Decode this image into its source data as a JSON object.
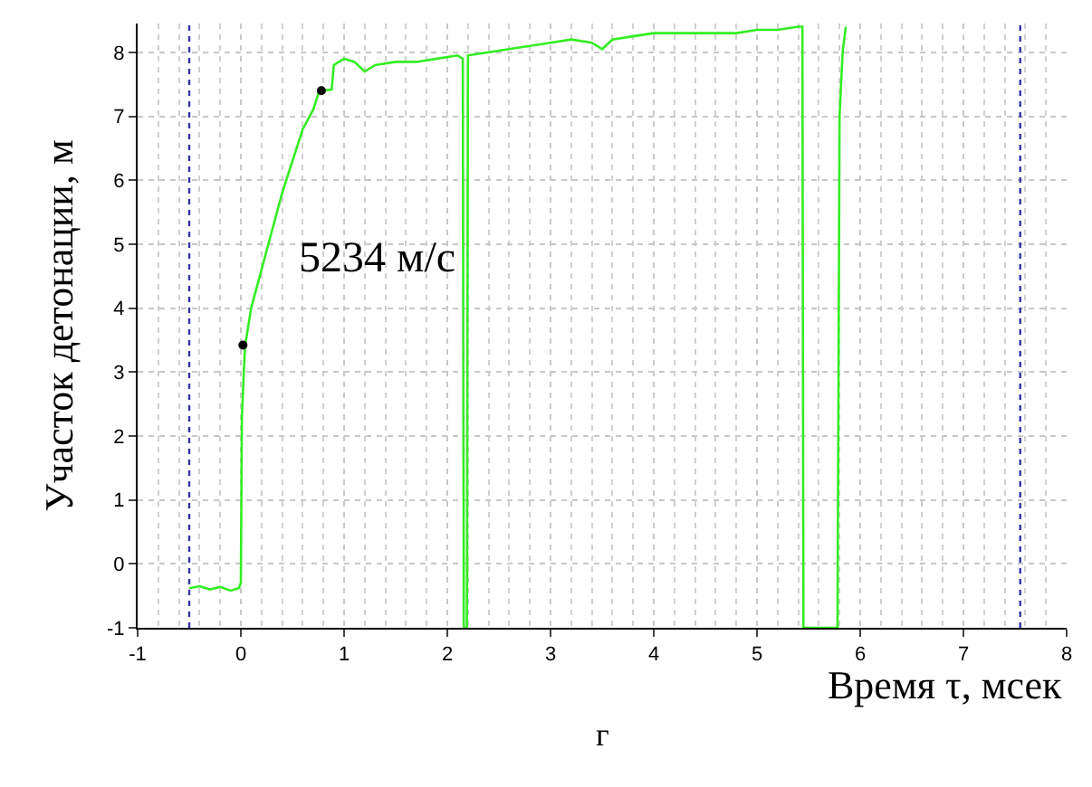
{
  "chart_data": {
    "type": "line",
    "xlabel": "Время τ, мсек",
    "ylabel": "Участок детонации, м",
    "annotations": [
      "5234 м/с",
      "г"
    ],
    "xlim": [
      -1,
      8
    ],
    "ylim": [
      -1,
      8.45
    ],
    "xticks": [
      -1,
      0,
      1,
      2,
      3,
      4,
      5,
      6,
      7,
      8
    ],
    "yticks": [
      -1,
      0,
      1,
      2,
      3,
      4,
      5,
      6,
      7,
      8
    ],
    "grid": true,
    "series": [
      {
        "color": "#33ee22",
        "marker": "none",
        "x": [
          -0.5,
          -0.4,
          -0.3,
          -0.2,
          -0.1,
          -0.02,
          0.0,
          0.01,
          0.04,
          0.1,
          0.2,
          0.3,
          0.4,
          0.5,
          0.6,
          0.7,
          0.75,
          0.8,
          0.88,
          0.9,
          1.0,
          1.1,
          1.2,
          1.3,
          1.5,
          1.7,
          1.9,
          2.1,
          2.15,
          2.16,
          2.19,
          2.2,
          2.4,
          2.6,
          2.8,
          3.0,
          3.2,
          3.4,
          3.5,
          3.6,
          3.8,
          4.0,
          4.2,
          4.4,
          4.6,
          4.8,
          5.0,
          5.2,
          5.4,
          5.44,
          5.45,
          5.78,
          5.8,
          5.83,
          5.86
        ],
        "values": [
          -0.38,
          -0.35,
          -0.4,
          -0.36,
          -0.42,
          -0.38,
          -0.3,
          2.3,
          3.4,
          4.0,
          4.6,
          5.2,
          5.8,
          6.3,
          6.8,
          7.1,
          7.35,
          7.4,
          7.42,
          7.8,
          7.9,
          7.85,
          7.7,
          7.8,
          7.85,
          7.85,
          7.9,
          7.95,
          7.9,
          -1,
          -1,
          7.95,
          8.0,
          8.05,
          8.1,
          8.15,
          8.2,
          8.15,
          8.05,
          8.2,
          8.25,
          8.3,
          8.3,
          8.3,
          8.3,
          8.3,
          8.35,
          8.35,
          8.4,
          8.4,
          -1,
          -1,
          7.0,
          8.0,
          8.4
        ]
      },
      {
        "type": "scatter",
        "color": "#000000",
        "marker": "circle",
        "x": [
          0.02,
          0.78
        ],
        "values": [
          3.42,
          7.4
        ]
      }
    ],
    "ref_lines": [
      {
        "axis": "x",
        "value": -0.5,
        "color": "#3333aa",
        "line_style": "dotted"
      },
      {
        "axis": "x",
        "value": 7.55,
        "color": "#3333aa",
        "line_style": "dotted"
      }
    ]
  }
}
